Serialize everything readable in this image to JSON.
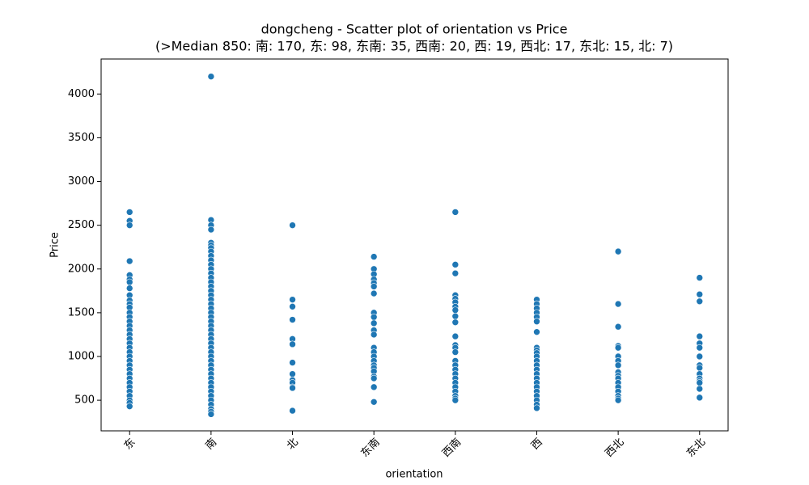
{
  "chart_data": {
    "type": "scatter",
    "title": "dongcheng - Scatter plot of orientation vs Price",
    "subtitle": "(>Median 850: 南: 170, 东: 98, 东南: 35, 西南: 20, 西: 19, 西北: 17, 东北: 15, 北: 7)",
    "x_label": "orientation",
    "y_label": "Price",
    "color": "#1f77b4",
    "categories": [
      "东",
      "南",
      "北",
      "东南",
      "西南",
      "西",
      "西北",
      "东北"
    ],
    "values": [
      [
        2650,
        2550,
        2500,
        2090,
        1930,
        1880,
        1850,
        1780,
        1700,
        1640,
        1600,
        1560,
        1500,
        1450,
        1400,
        1350,
        1300,
        1250,
        1200,
        1150,
        1100,
        1050,
        1000,
        950,
        900,
        850,
        800,
        750,
        700,
        650,
        600,
        550,
        500,
        470,
        430
      ],
      [
        4200,
        2560,
        2500,
        2450,
        2300,
        2270,
        2240,
        2200,
        2150,
        2100,
        2050,
        2000,
        1950,
        1900,
        1850,
        1800,
        1750,
        1700,
        1650,
        1600,
        1550,
        1500,
        1450,
        1400,
        1350,
        1300,
        1250,
        1200,
        1150,
        1100,
        1050,
        1000,
        950,
        900,
        850,
        800,
        750,
        700,
        650,
        600,
        550,
        500,
        450,
        400,
        370,
        340
      ],
      [
        2500,
        1650,
        1570,
        1420,
        1200,
        1140,
        930,
        800,
        730,
        700,
        650,
        640,
        380
      ],
      [
        2140,
        2000,
        1940,
        1880,
        1840,
        1800,
        1720,
        1500,
        1450,
        1380,
        1300,
        1250,
        1100,
        1050,
        1000,
        950,
        900,
        870,
        830,
        770,
        750,
        650,
        480
      ],
      [
        2650,
        2050,
        1950,
        1700,
        1660,
        1620,
        1570,
        1530,
        1460,
        1390,
        1230,
        1130,
        1100,
        1050,
        950,
        900,
        850,
        800,
        750,
        700,
        650,
        600,
        550,
        520,
        500
      ],
      [
        1650,
        1600,
        1550,
        1500,
        1450,
        1400,
        1280,
        1100,
        1070,
        1040,
        1000,
        950,
        900,
        850,
        800,
        750,
        700,
        650,
        600,
        550,
        500,
        450,
        410
      ],
      [
        2200,
        1600,
        1340,
        1120,
        1100,
        1000,
        950,
        900,
        820,
        780,
        750,
        700,
        650,
        600,
        550,
        520,
        500
      ],
      [
        1900,
        1710,
        1630,
        1230,
        1150,
        1100,
        1000,
        900,
        870,
        800,
        750,
        720,
        700,
        630,
        530
      ]
    ],
    "ylim": [
      150,
      4400
    ],
    "yticks": [
      500,
      1000,
      1500,
      2000,
      2500,
      3000,
      3500,
      4000
    ]
  }
}
